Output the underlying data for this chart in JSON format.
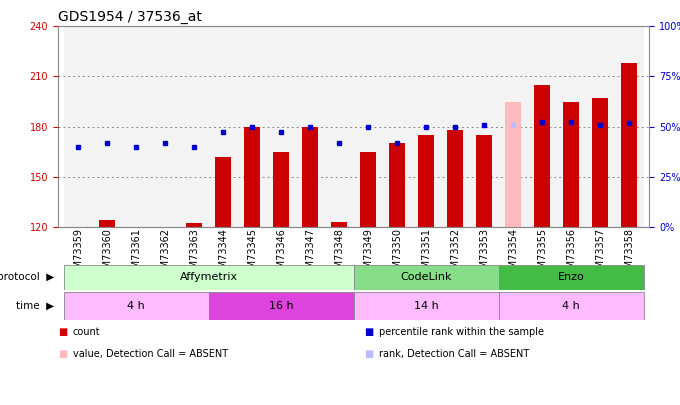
{
  "title": "GDS1954 / 37536_at",
  "samples": [
    "GSM73359",
    "GSM73360",
    "GSM73361",
    "GSM73362",
    "GSM73363",
    "GSM73344",
    "GSM73345",
    "GSM73346",
    "GSM73347",
    "GSM73348",
    "GSM73349",
    "GSM73350",
    "GSM73351",
    "GSM73352",
    "GSM73353",
    "GSM73354",
    "GSM73355",
    "GSM73356",
    "GSM73357",
    "GSM73358"
  ],
  "bar_values": [
    120,
    124,
    120,
    120,
    122,
    162,
    180,
    165,
    180,
    123,
    165,
    170,
    175,
    178,
    175,
    195,
    205,
    195,
    197,
    218
  ],
  "bar_colors": [
    "#cc0000",
    "#cc0000",
    "#cc0000",
    "#cc0000",
    "#cc0000",
    "#cc0000",
    "#cc0000",
    "#cc0000",
    "#cc0000",
    "#cc0000",
    "#cc0000",
    "#cc0000",
    "#cc0000",
    "#cc0000",
    "#cc0000",
    "#ffbbbb",
    "#cc0000",
    "#cc0000",
    "#cc0000",
    "#cc0000"
  ],
  "dot_values": [
    168,
    170,
    168,
    170,
    168,
    177,
    180,
    177,
    180,
    170,
    180,
    170,
    180,
    180,
    181,
    181,
    183,
    183,
    181,
    182
  ],
  "dot_colors": [
    "#0000cc",
    "#0000cc",
    "#0000cc",
    "#0000cc",
    "#0000cc",
    "#0000cc",
    "#0000cc",
    "#0000cc",
    "#0000cc",
    "#0000cc",
    "#0000cc",
    "#0000cc",
    "#0000cc",
    "#0000cc",
    "#0000cc",
    "#bbbbff",
    "#0000cc",
    "#0000cc",
    "#0000cc",
    "#0000cc"
  ],
  "ylim_left": [
    120,
    240
  ],
  "yticks_left": [
    120,
    150,
    180,
    210,
    240
  ],
  "yticks_right_pct": [
    0,
    25,
    50,
    75,
    100
  ],
  "protocol_groups": [
    {
      "label": "Affymetrix",
      "start": 0,
      "end": 9,
      "color": "#ccffcc"
    },
    {
      "label": "CodeLink",
      "start": 10,
      "end": 14,
      "color": "#88dd88"
    },
    {
      "label": "Enzo",
      "start": 15,
      "end": 19,
      "color": "#44bb44"
    }
  ],
  "time_groups": [
    {
      "label": "4 h",
      "start": 0,
      "end": 4,
      "color": "#ffbbff"
    },
    {
      "label": "16 h",
      "start": 5,
      "end": 9,
      "color": "#dd44dd"
    },
    {
      "label": "14 h",
      "start": 10,
      "end": 14,
      "color": "#ffbbff"
    },
    {
      "label": "4 h",
      "start": 15,
      "end": 19,
      "color": "#ffbbff"
    }
  ],
  "legend_items": [
    {
      "label": "count",
      "color": "#cc0000"
    },
    {
      "label": "percentile rank within the sample",
      "color": "#0000cc"
    },
    {
      "label": "value, Detection Call = ABSENT",
      "color": "#ffbbbb"
    },
    {
      "label": "rank, Detection Call = ABSENT",
      "color": "#bbbbff"
    }
  ],
  "bar_width": 0.55,
  "background_color": "#ffffff",
  "grid_color": "#888888",
  "title_fontsize": 10,
  "tick_fontsize": 7,
  "left_axis_color": "#cc0000",
  "right_axis_color": "#0000cc",
  "col_bg_color": "#dddddd",
  "plot_bg_color": "#ffffff"
}
